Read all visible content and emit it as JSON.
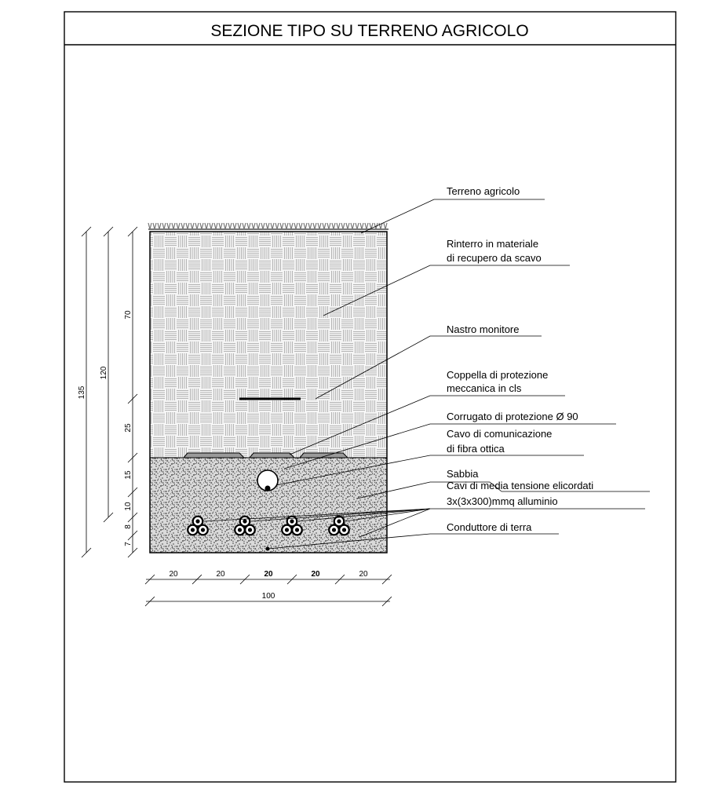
{
  "title": "SEZIONE TIPO SU TERRENO AGRICOLO",
  "labels": {
    "terreno": "Terreno agricolo",
    "rinterro_1": "Rinterro in materiale",
    "rinterro_2": "di recupero da scavo",
    "nastro": "Nastro monitore",
    "coppella_1": "Coppella di protezione",
    "coppella_2": "meccanica in cls",
    "corrugato": "Corrugato di protezione Ø 90",
    "cavo_com_1": "Cavo di comunicazione",
    "cavo_com_2": "di fibra ottica",
    "sabbia": "Sabbia",
    "cavi_mt_1": "Cavi di  media  tensione elicordati",
    "cavi_mt_2": "3x(3x300)mmq alluminio",
    "conduttore": "Conduttore di terra"
  },
  "dimensions": {
    "vertical": {
      "d135": "135",
      "d120": "120",
      "d70": "70",
      "d25": "25",
      "d15": "15",
      "d10": "10",
      "d8": "8",
      "d7": "7"
    },
    "horizontal": [
      "20",
      "20",
      "20",
      "20",
      "20"
    ],
    "total_width": "100"
  },
  "colors": {
    "line": "#000000",
    "fill_rinterro": "#f3f3f3",
    "fill_sabbia": "#dcdcdc",
    "grass": "#777777"
  }
}
